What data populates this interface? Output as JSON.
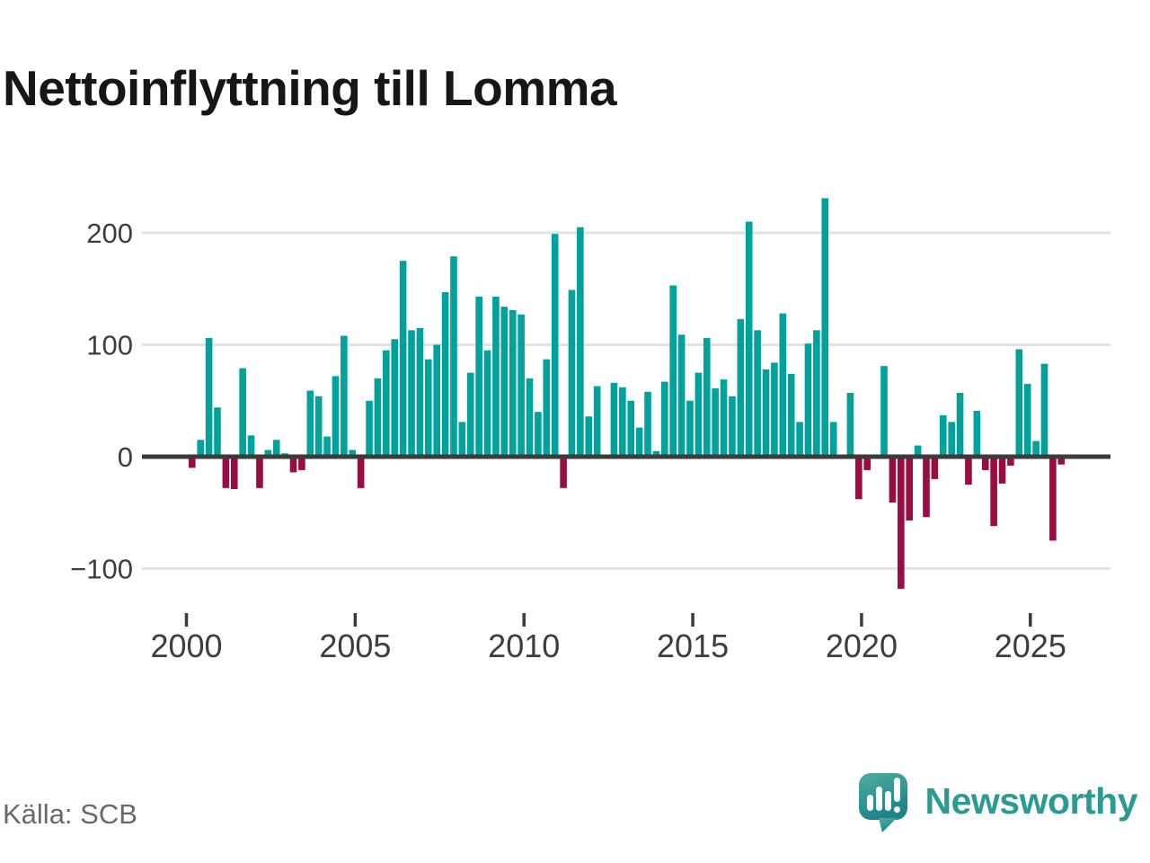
{
  "title": "Nettoinflyttning till Lomma",
  "source": "Källa: SCB",
  "logo": {
    "brand": "Newsworthy",
    "icon": "speech-bubble-bar-chart-icon"
  },
  "colors": {
    "positive": "#00a29b",
    "negative": "#9b0d40",
    "axis": "#3b3b3b",
    "grid": "#e2e2e2",
    "tick_text": "#3d3d3d",
    "muted_text": "#68686d",
    "brand": "#2b9a93",
    "logo_gradient_top": "#4fae9f",
    "logo_gradient_bottom": "#1d8289"
  },
  "chart_data": {
    "type": "bar",
    "title": "Nettoinflyttning till Lomma",
    "frequency": "quarterly",
    "x_start_year": 2000,
    "x_tick_labels": [
      "2000",
      "2005",
      "2010",
      "2015",
      "2020",
      "2025"
    ],
    "y_ticks": [
      200,
      100,
      0,
      -100
    ],
    "ylim": [
      -130,
      240
    ],
    "grid": true,
    "legend": false,
    "values": [
      -10,
      15,
      106,
      44,
      -28,
      -29,
      79,
      19,
      -28,
      6,
      15,
      3,
      -14,
      -12,
      59,
      54,
      18,
      72,
      108,
      6,
      -28,
      50,
      70,
      95,
      105,
      175,
      113,
      115,
      87,
      100,
      147,
      179,
      31,
      75,
      143,
      95,
      143,
      134,
      131,
      127,
      70,
      40,
      87,
      199,
      -28,
      149,
      205,
      36,
      63,
      0,
      66,
      62,
      50,
      26,
      58,
      5,
      67,
      153,
      109,
      50,
      75,
      106,
      61,
      69,
      54,
      123,
      210,
      113,
      78,
      84,
      128,
      74,
      31,
      101,
      113,
      231,
      31,
      0,
      57,
      -38,
      -12,
      0,
      81,
      -41,
      -118,
      -57,
      10,
      -54,
      -20,
      37,
      31,
      57,
      -25,
      41,
      -12,
      -62,
      -24,
      -8,
      96,
      65,
      14,
      83,
      -75,
      -7
    ]
  }
}
